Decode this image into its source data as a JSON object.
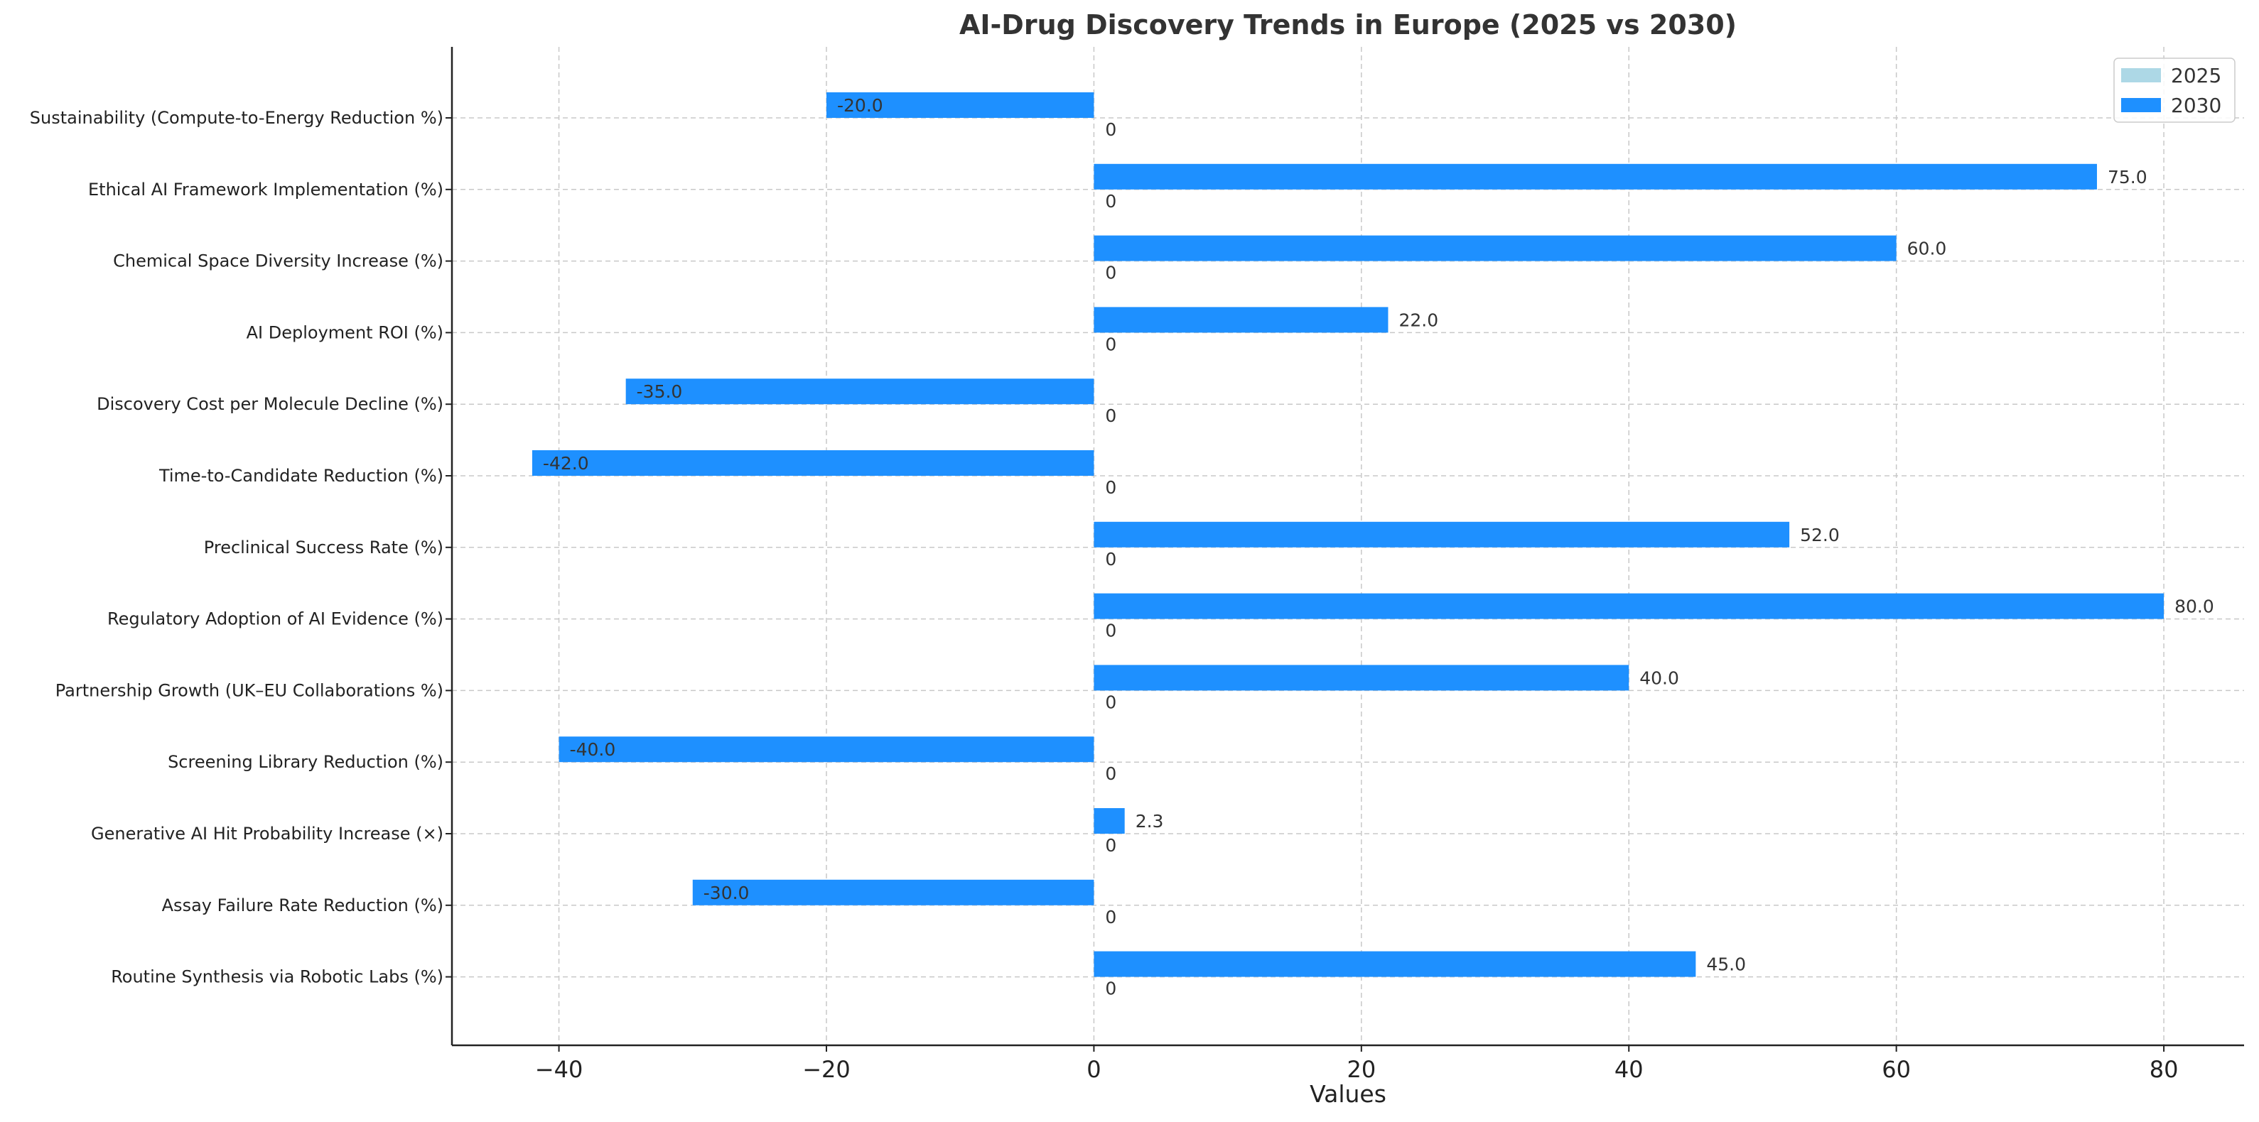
{
  "chart_data": {
    "type": "bar",
    "orientation": "horizontal",
    "title": "AI-Drug Discovery Trends in Europe (2025 vs 2030)",
    "xlabel": "Values",
    "ylabel": "",
    "xlim": [
      -48,
      86
    ],
    "xticks": [
      -40,
      -20,
      0,
      20,
      40,
      60,
      80
    ],
    "xtick_labels": [
      "−40",
      "−20",
      "0",
      "20",
      "40",
      "60",
      "80"
    ],
    "grid": true,
    "legend_position": "top-right",
    "categories": [
      "Sustainability (Compute-to-Energy Reduction %)",
      "Ethical AI Framework Implementation (%)",
      "Chemical Space Diversity Increase (%)",
      "AI Deployment ROI (%)",
      "Discovery Cost per Molecule Decline (%)",
      "Time-to-Candidate Reduction (%)",
      "Preclinical Success Rate (%)",
      "Regulatory Adoption of AI Evidence (%)",
      "Partnership Growth (UK–EU Collaborations %)",
      "Screening Library Reduction (%)",
      "Generative AI Hit Probability Increase (×)",
      "Assay Failure Rate Reduction (%)",
      "Routine Synthesis via Robotic Labs (%)"
    ],
    "series": [
      {
        "name": "2025",
        "color": "#add8e6",
        "values": [
          0,
          0,
          0,
          0,
          0,
          0,
          0,
          0,
          0,
          0,
          0,
          0,
          0
        ],
        "labels": [
          "0",
          "0",
          "0",
          "0",
          "0",
          "0",
          "0",
          "0",
          "0",
          "0",
          "0",
          "0",
          "0"
        ]
      },
      {
        "name": "2030",
        "color": "#1e90ff",
        "values": [
          -20.0,
          75.0,
          60.0,
          22.0,
          -35.0,
          -42.0,
          52.0,
          80.0,
          40.0,
          -40.0,
          2.3,
          -30.0,
          45.0
        ],
        "labels": [
          "-20.0",
          "75.0",
          "60.0",
          "22.0",
          "-35.0",
          "-42.0",
          "52.0",
          "80.0",
          "40.0",
          "-40.0",
          "2.3",
          "-30.0",
          "45.0"
        ]
      }
    ]
  }
}
